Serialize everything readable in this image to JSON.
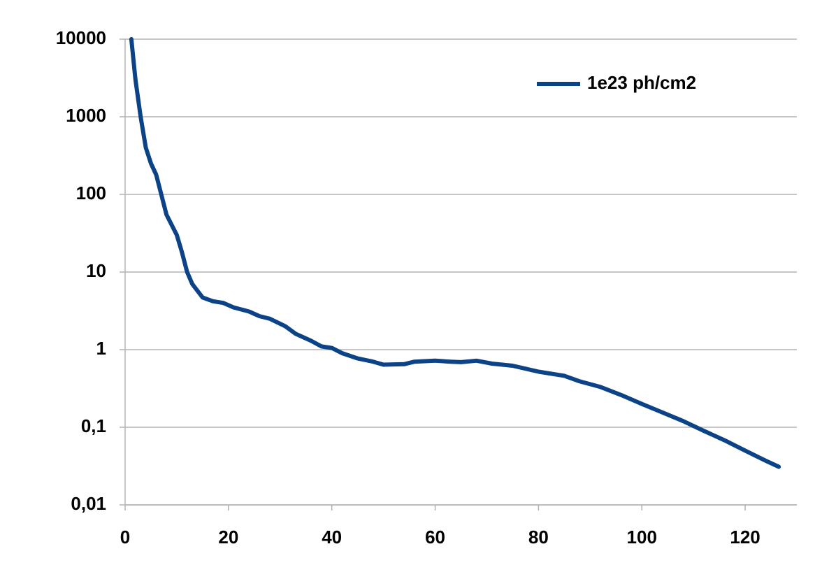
{
  "chart_data": {
    "type": "line",
    "x": [
      1.2,
      2,
      3,
      4,
      5,
      6,
      7,
      8,
      10,
      11,
      12,
      13,
      15,
      17,
      19,
      21,
      24,
      26,
      28,
      31,
      33,
      36,
      38,
      40,
      42,
      45,
      48,
      50,
      54,
      56,
      60,
      63,
      65,
      68,
      71,
      75,
      80,
      85,
      88,
      92,
      96,
      100,
      104,
      108,
      112,
      116,
      120,
      124,
      126.5
    ],
    "series": [
      {
        "name": "1e23 ph/cm2",
        "color": "#0b4386",
        "values": [
          10000,
          3000,
          1000,
          400,
          250,
          180,
          100,
          55,
          30,
          18,
          10,
          7,
          4.7,
          4.2,
          4.0,
          3.5,
          3.1,
          2.7,
          2.5,
          2.0,
          1.6,
          1.3,
          1.1,
          1.05,
          0.9,
          0.77,
          0.7,
          0.64,
          0.65,
          0.7,
          0.72,
          0.7,
          0.69,
          0.72,
          0.66,
          0.62,
          0.52,
          0.46,
          0.39,
          0.33,
          0.26,
          0.2,
          0.155,
          0.12,
          0.09,
          0.068,
          0.05,
          0.037,
          0.031
        ]
      }
    ],
    "xlim": [
      0,
      130
    ],
    "xticks": [
      0,
      20,
      40,
      60,
      80,
      100,
      120
    ],
    "ylim": [
      0.01,
      10000
    ],
    "yticks": [
      {
        "value": 0.01,
        "label": "0,01"
      },
      {
        "value": 0.1,
        "label": "0,1"
      },
      1,
      10,
      100,
      1000,
      10000
    ],
    "log_y": true,
    "grid": true,
    "legend": "upper right"
  }
}
